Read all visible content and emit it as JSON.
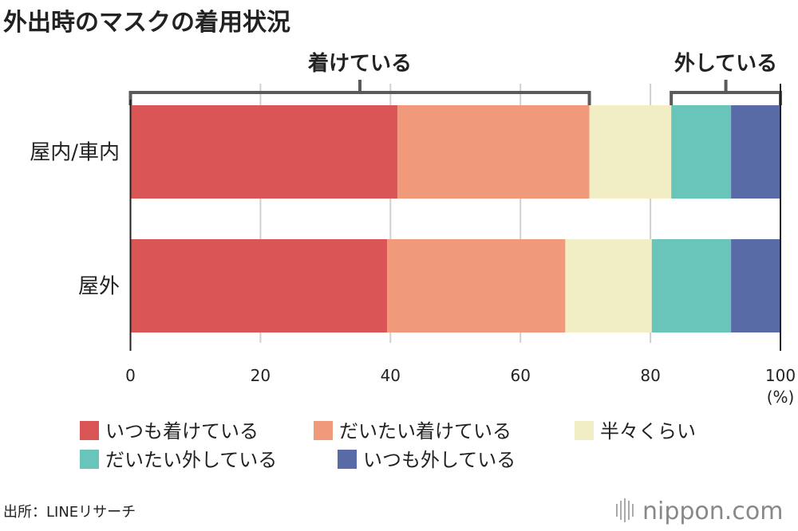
{
  "chart_data": {
    "type": "bar",
    "orientation": "horizontal",
    "stacked": true,
    "title": "外出時のマスクの着用状況",
    "categories": [
      "屋内/車内",
      "屋外"
    ],
    "series": [
      {
        "name": "いつも着けている",
        "color": "#d95556",
        "values": [
          41.1,
          39.5
        ]
      },
      {
        "name": "だいたい着けている",
        "color": "#f19a7b",
        "values": [
          29.5,
          27.4
        ]
      },
      {
        "name": "半々くらい",
        "color": "#f1eec5",
        "values": [
          12.6,
          13.3
        ]
      },
      {
        "name": "だいたい外している",
        "color": "#69c5ba",
        "values": [
          9.2,
          12.2
        ]
      },
      {
        "name": "いつも外している",
        "color": "#586ba6",
        "values": [
          7.6,
          7.6
        ]
      }
    ],
    "xlim": [
      0,
      100
    ],
    "xticks": [
      "0",
      "20",
      "40",
      "60",
      "80",
      "100"
    ],
    "xunit": "(%)",
    "grid": true,
    "legend_position": "bottom",
    "annotations": [
      {
        "text": "着けている",
        "from": 0,
        "to": 70.6
      },
      {
        "text": "外している",
        "from": 83.2,
        "to": 100
      }
    ]
  },
  "source": "出所：LINEリサーチ",
  "logo": "nippon.com"
}
